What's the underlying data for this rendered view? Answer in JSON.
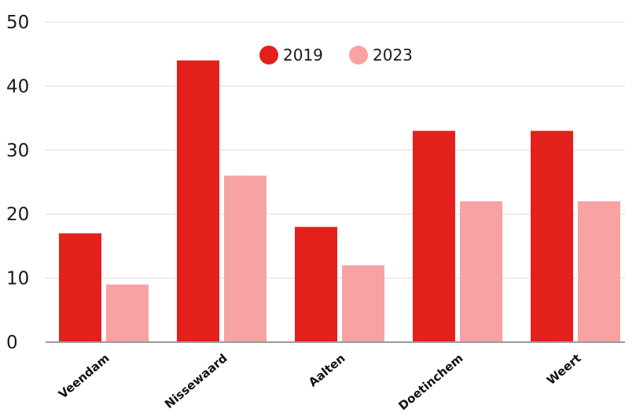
{
  "chart_data": {
    "type": "bar",
    "categories": [
      "Veendam",
      "Nissewaard",
      "Aalten",
      "Doetinchem",
      "Weert"
    ],
    "series": [
      {
        "name": "2019",
        "values": [
          17,
          44,
          18,
          33,
          33
        ],
        "color": "#e3201b"
      },
      {
        "name": "2023",
        "values": [
          9,
          26,
          12,
          22,
          22
        ],
        "color": "#f8a2a2"
      }
    ],
    "y_ticks": [
      "0",
      "10",
      "20",
      "30",
      "40",
      "50"
    ],
    "ylim": [
      0,
      50
    ],
    "grid": true,
    "legend_position": "top-center",
    "title": "",
    "xlabel": "",
    "ylabel": ""
  }
}
